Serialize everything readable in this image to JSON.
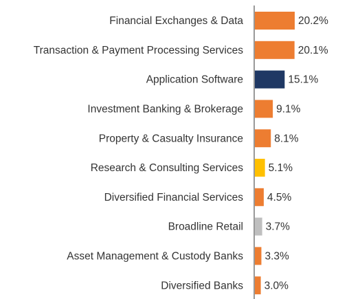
{
  "chart_data": {
    "type": "bar",
    "orientation": "horizontal",
    "categories": [
      "Financial Exchanges & Data",
      "Transaction & Payment Processing Services",
      "Application Software",
      "Investment Banking & Brokerage",
      "Property & Casualty Insurance",
      "Research & Consulting Services",
      "Diversified Financial Services",
      "Broadline Retail",
      "Asset Management & Custody Banks",
      "Diversified Banks"
    ],
    "values": [
      20.2,
      20.1,
      15.1,
      9.1,
      8.1,
      5.1,
      4.5,
      3.7,
      3.3,
      3.0
    ],
    "value_labels": [
      "20.2%",
      "20.1%",
      "15.1%",
      "9.1%",
      "8.1%",
      "5.1%",
      "4.5%",
      "3.7%",
      "3.3%",
      "3.0%"
    ],
    "colors": [
      "#ED7D31",
      "#ED7D31",
      "#1F3864",
      "#ED7D31",
      "#ED7D31",
      "#FFC000",
      "#ED7D31",
      "#BFBFBF",
      "#ED7D31",
      "#ED7D31"
    ]
  }
}
